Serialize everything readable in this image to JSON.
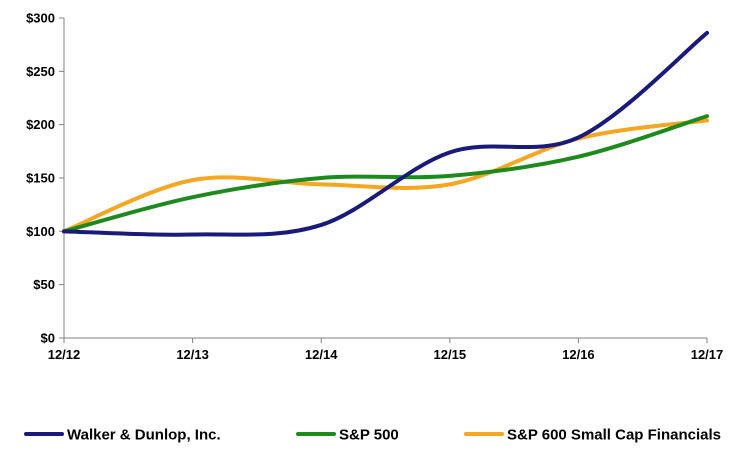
{
  "chart_data": {
    "type": "line",
    "title": "",
    "xlabel": "",
    "ylabel": "",
    "categories": [
      "12/12",
      "12/13",
      "12/14",
      "12/15",
      "12/16",
      "12/17"
    ],
    "y_ticks": [
      "$0",
      "$50",
      "$100",
      "$150",
      "$200",
      "$250",
      "$300"
    ],
    "ylim": [
      0,
      300
    ],
    "grid": false,
    "legend_position": "bottom",
    "series": [
      {
        "name": "Walker & Dunlop, Inc.",
        "color": "#1a1a7a",
        "values": [
          100,
          97,
          106,
          174,
          188,
          286
        ]
      },
      {
        "name": "S&P 500",
        "color": "#1e8a1e",
        "values": [
          100,
          132,
          150,
          152,
          170,
          208
        ]
      },
      {
        "name": "S&P 600 Small Cap Financials",
        "color": "#f5a623",
        "values": [
          100,
          148,
          144,
          144,
          187,
          204
        ]
      }
    ]
  }
}
